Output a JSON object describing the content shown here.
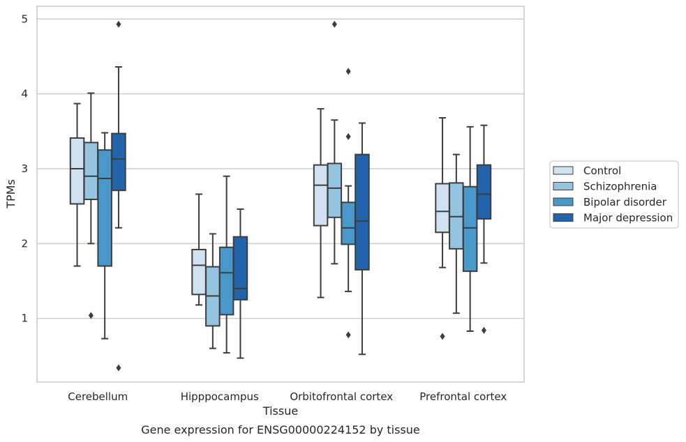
{
  "caption": "Gene expression for ENSG00000224152 by tissue",
  "chart_data": {
    "type": "box",
    "title": "",
    "xlabel": "Tissue",
    "ylabel": "TPMs",
    "ylim": [
      0.15,
      5.17
    ],
    "yticks": [
      "1",
      "2",
      "3",
      "4",
      "5"
    ],
    "grid": true,
    "legend_position": "right",
    "categories": [
      "Cerebellum",
      "Hipppocampus",
      "Orbitofrontal cortex",
      "Prefrontal cortex"
    ],
    "series": [
      {
        "name": "Control",
        "color": "#d0e1f2",
        "boxes": [
          {
            "whisker_low": 1.7,
            "q1": 2.53,
            "median": 3.0,
            "q3": 3.41,
            "whisker_high": 3.87,
            "outliers": []
          },
          {
            "whisker_low": 1.18,
            "q1": 1.32,
            "median": 1.71,
            "q3": 1.92,
            "whisker_high": 2.66,
            "outliers": []
          },
          {
            "whisker_low": 1.28,
            "q1": 2.24,
            "median": 2.78,
            "q3": 3.05,
            "whisker_high": 3.8,
            "outliers": []
          },
          {
            "whisker_low": 1.68,
            "q1": 2.15,
            "median": 2.43,
            "q3": 2.8,
            "whisker_high": 3.68,
            "outliers": [
              0.76
            ]
          }
        ]
      },
      {
        "name": "Schizophrenia",
        "color": "#94c4df",
        "boxes": [
          {
            "whisker_low": 2.0,
            "q1": 2.59,
            "median": 2.9,
            "q3": 3.35,
            "whisker_high": 4.01,
            "outliers": [
              1.04
            ]
          },
          {
            "whisker_low": 0.6,
            "q1": 0.9,
            "median": 1.3,
            "q3": 1.69,
            "whisker_high": 2.13,
            "outliers": []
          },
          {
            "whisker_low": 1.73,
            "q1": 2.35,
            "median": 2.74,
            "q3": 3.07,
            "whisker_high": 3.65,
            "outliers": [
              4.93
            ]
          },
          {
            "whisker_low": 1.07,
            "q1": 1.93,
            "median": 2.36,
            "q3": 2.81,
            "whisker_high": 3.19,
            "outliers": []
          }
        ]
      },
      {
        "name": "Bipolar disorder",
        "color": "#4a98c9",
        "boxes": [
          {
            "whisker_low": 0.73,
            "q1": 1.7,
            "median": 2.87,
            "q3": 3.25,
            "whisker_high": 3.48,
            "outliers": []
          },
          {
            "whisker_low": 0.54,
            "q1": 1.05,
            "median": 1.61,
            "q3": 1.95,
            "whisker_high": 2.9,
            "outliers": []
          },
          {
            "whisker_low": 1.36,
            "q1": 1.99,
            "median": 2.21,
            "q3": 2.55,
            "whisker_high": 2.77,
            "outliers": [
              0.78,
              3.43,
              4.3
            ]
          },
          {
            "whisker_low": 0.83,
            "q1": 1.63,
            "median": 2.21,
            "q3": 2.76,
            "whisker_high": 3.56,
            "outliers": []
          }
        ]
      },
      {
        "name": "Major depression",
        "color": "#2164ab",
        "boxes": [
          {
            "whisker_low": 2.21,
            "q1": 2.71,
            "median": 3.13,
            "q3": 3.47,
            "whisker_high": 4.36,
            "outliers": [
              0.34,
              4.93
            ]
          },
          {
            "whisker_low": 0.47,
            "q1": 1.25,
            "median": 1.4,
            "q3": 2.09,
            "whisker_high": 2.46,
            "outliers": []
          },
          {
            "whisker_low": 0.52,
            "q1": 1.65,
            "median": 2.3,
            "q3": 3.19,
            "whisker_high": 3.61,
            "outliers": []
          },
          {
            "whisker_low": 1.74,
            "q1": 2.33,
            "median": 2.66,
            "q3": 3.05,
            "whisker_high": 3.58,
            "outliers": [
              0.84
            ]
          }
        ]
      }
    ]
  }
}
